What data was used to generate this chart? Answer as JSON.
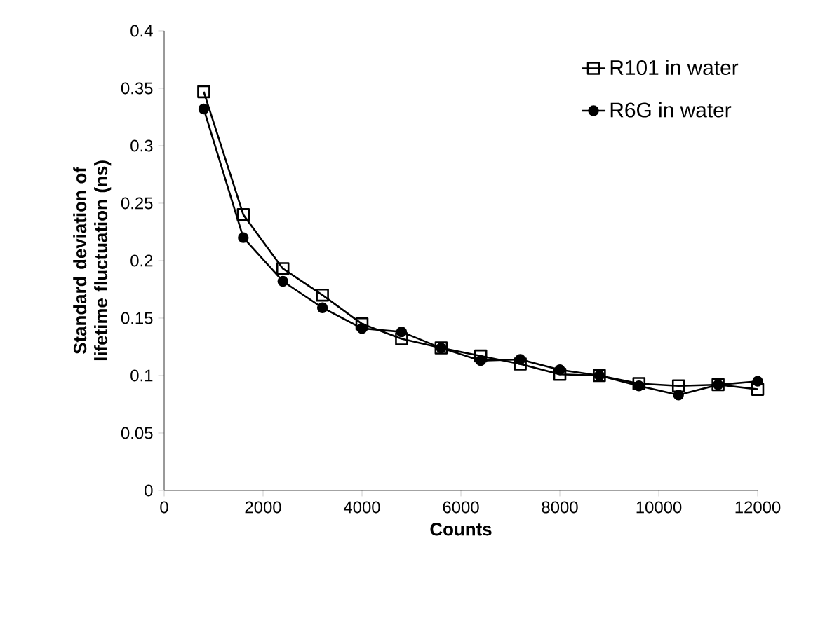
{
  "chart_data": {
    "type": "line",
    "xlabel": "Counts",
    "ylabel": "Standard deviation of lifetime fluctuation (ns)",
    "x": [
      800,
      1600,
      2400,
      3200,
      4000,
      4800,
      5600,
      6400,
      7200,
      8000,
      8800,
      9600,
      10400,
      11200,
      12000
    ],
    "series": [
      {
        "name": "R101 in water",
        "color": "#000000",
        "marker": "square",
        "values": [
          0.347,
          0.24,
          0.193,
          0.17,
          0.145,
          0.132,
          0.124,
          0.117,
          0.11,
          0.101,
          0.1,
          0.093,
          0.091,
          0.092,
          0.088
        ]
      },
      {
        "name": "R6G in water",
        "color": "#000000",
        "marker": "circle",
        "values": [
          0.332,
          0.22,
          0.182,
          0.159,
          0.141,
          0.138,
          0.124,
          0.113,
          0.114,
          0.105,
          0.1,
          0.091,
          0.083,
          0.092,
          0.095
        ]
      }
    ],
    "xlim": [
      0,
      12000
    ],
    "ylim": [
      0,
      0.4
    ],
    "xticks": [
      0,
      2000,
      4000,
      6000,
      8000,
      10000,
      12000
    ],
    "yticks": [
      0,
      0.05,
      0.1,
      0.15,
      0.2,
      0.25,
      0.3,
      0.35,
      0.4
    ],
    "grid": false,
    "legend": "top right",
    "line_style": "solid"
  }
}
